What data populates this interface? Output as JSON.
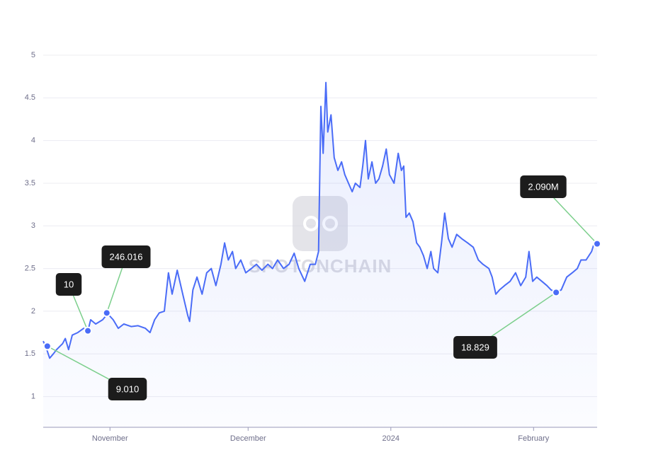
{
  "chart_data": {
    "type": "line",
    "color": "#4a6cf7",
    "grid": true,
    "watermark": "SPOTONCHAIN",
    "xlim": [
      0,
      120.3
    ],
    "ylim": [
      0.64,
      5
    ],
    "yticks": [
      1,
      1.5,
      2,
      2.5,
      3,
      3.5,
      4,
      4.5,
      5
    ],
    "xticks": [
      {
        "value": 14.5,
        "label": "November"
      },
      {
        "value": 44.5,
        "label": "December"
      },
      {
        "value": 75.5,
        "label": "2024"
      },
      {
        "value": 106.5,
        "label": "February"
      }
    ],
    "x": [
      0,
      0.6,
      1.4,
      2.2,
      2.9,
      4.2,
      4.8,
      5.5,
      6.3,
      7.5,
      8.8,
      9.7,
      10.3,
      11.4,
      12.9,
      14,
      15.2,
      16.3,
      17.5,
      19.1,
      20.6,
      22.2,
      23.2,
      24.2,
      25.2,
      26.3,
      27.2,
      28,
      29.1,
      30.3,
      31.4,
      31.8,
      32.5,
      33.4,
      34.5,
      35.5,
      36.5,
      37.5,
      38.6,
      39.4,
      40.2,
      41.1,
      41.8,
      42.9,
      44,
      45.2,
      46.3,
      47.5,
      48.8,
      49.8,
      50.9,
      52.2,
      53.4,
      54.5,
      55.5,
      56.8,
      58,
      59.1,
      59.8,
      60.3,
      60.8,
      61.4,
      61.8,
      62.5,
      63.2,
      64,
      64.8,
      65.5,
      66.3,
      67.1,
      67.8,
      68.8,
      69.4,
      70,
      70.6,
      71.4,
      72.2,
      72.9,
      73.7,
      74.5,
      75.2,
      76.2,
      77.1,
      77.8,
      78.3,
      78.8,
      79.5,
      80.3,
      81.1,
      81.8,
      82.6,
      83.4,
      84.2,
      84.8,
      85.7,
      86.5,
      87.2,
      88,
      88.8,
      89.8,
      90.9,
      92.2,
      93.4,
      94.5,
      95.5,
      96.8,
      97.5,
      98.3,
      99.1,
      100.2,
      101.4,
      102.6,
      103.7,
      104.8,
      105.5,
      106.3,
      107.2,
      108.3,
      109.4,
      110.3,
      111.4,
      112.5,
      113.7,
      114.9,
      116,
      116.8,
      117.9,
      119.1,
      119.8,
      120.3
    ],
    "values": [
      1.65,
      1.58,
      1.45,
      1.5,
      1.55,
      1.62,
      1.68,
      1.55,
      1.72,
      1.75,
      1.8,
      1.77,
      1.9,
      1.85,
      1.9,
      1.97,
      1.9,
      1.8,
      1.85,
      1.82,
      1.83,
      1.8,
      1.75,
      1.9,
      1.98,
      2.0,
      2.45,
      2.2,
      2.48,
      2.2,
      1.95,
      1.88,
      2.25,
      2.4,
      2.2,
      2.45,
      2.5,
      2.3,
      2.55,
      2.8,
      2.6,
      2.7,
      2.5,
      2.6,
      2.45,
      2.5,
      2.55,
      2.48,
      2.55,
      2.5,
      2.6,
      2.5,
      2.55,
      2.68,
      2.5,
      2.35,
      2.55,
      2.55,
      2.7,
      4.4,
      3.85,
      4.68,
      4.1,
      4.3,
      3.8,
      3.65,
      3.75,
      3.6,
      3.5,
      3.4,
      3.5,
      3.45,
      3.7,
      4.0,
      3.55,
      3.75,
      3.5,
      3.55,
      3.7,
      3.9,
      3.6,
      3.5,
      3.85,
      3.65,
      3.7,
      3.1,
      3.15,
      3.05,
      2.8,
      2.75,
      2.65,
      2.5,
      2.7,
      2.5,
      2.45,
      2.8,
      3.15,
      2.85,
      2.75,
      2.9,
      2.85,
      2.8,
      2.75,
      2.6,
      2.55,
      2.5,
      2.4,
      2.2,
      2.25,
      2.3,
      2.35,
      2.45,
      2.3,
      2.4,
      2.7,
      2.35,
      2.4,
      2.35,
      2.3,
      2.25,
      2.22,
      2.25,
      2.4,
      2.45,
      2.5,
      2.6,
      2.6,
      2.7,
      2.82,
      2.78
    ],
    "annotations": [
      {
        "x": 0.9,
        "y": 1.59,
        "label": "9.010"
      },
      {
        "x": 9.7,
        "y": 1.77,
        "label": "10"
      },
      {
        "x": 13.8,
        "y": 1.98,
        "label": "246.016"
      },
      {
        "x": 111.4,
        "y": 2.22,
        "label": "18.829"
      },
      {
        "x": 120.3,
        "y": 2.79,
        "label": "2.090M"
      }
    ]
  }
}
